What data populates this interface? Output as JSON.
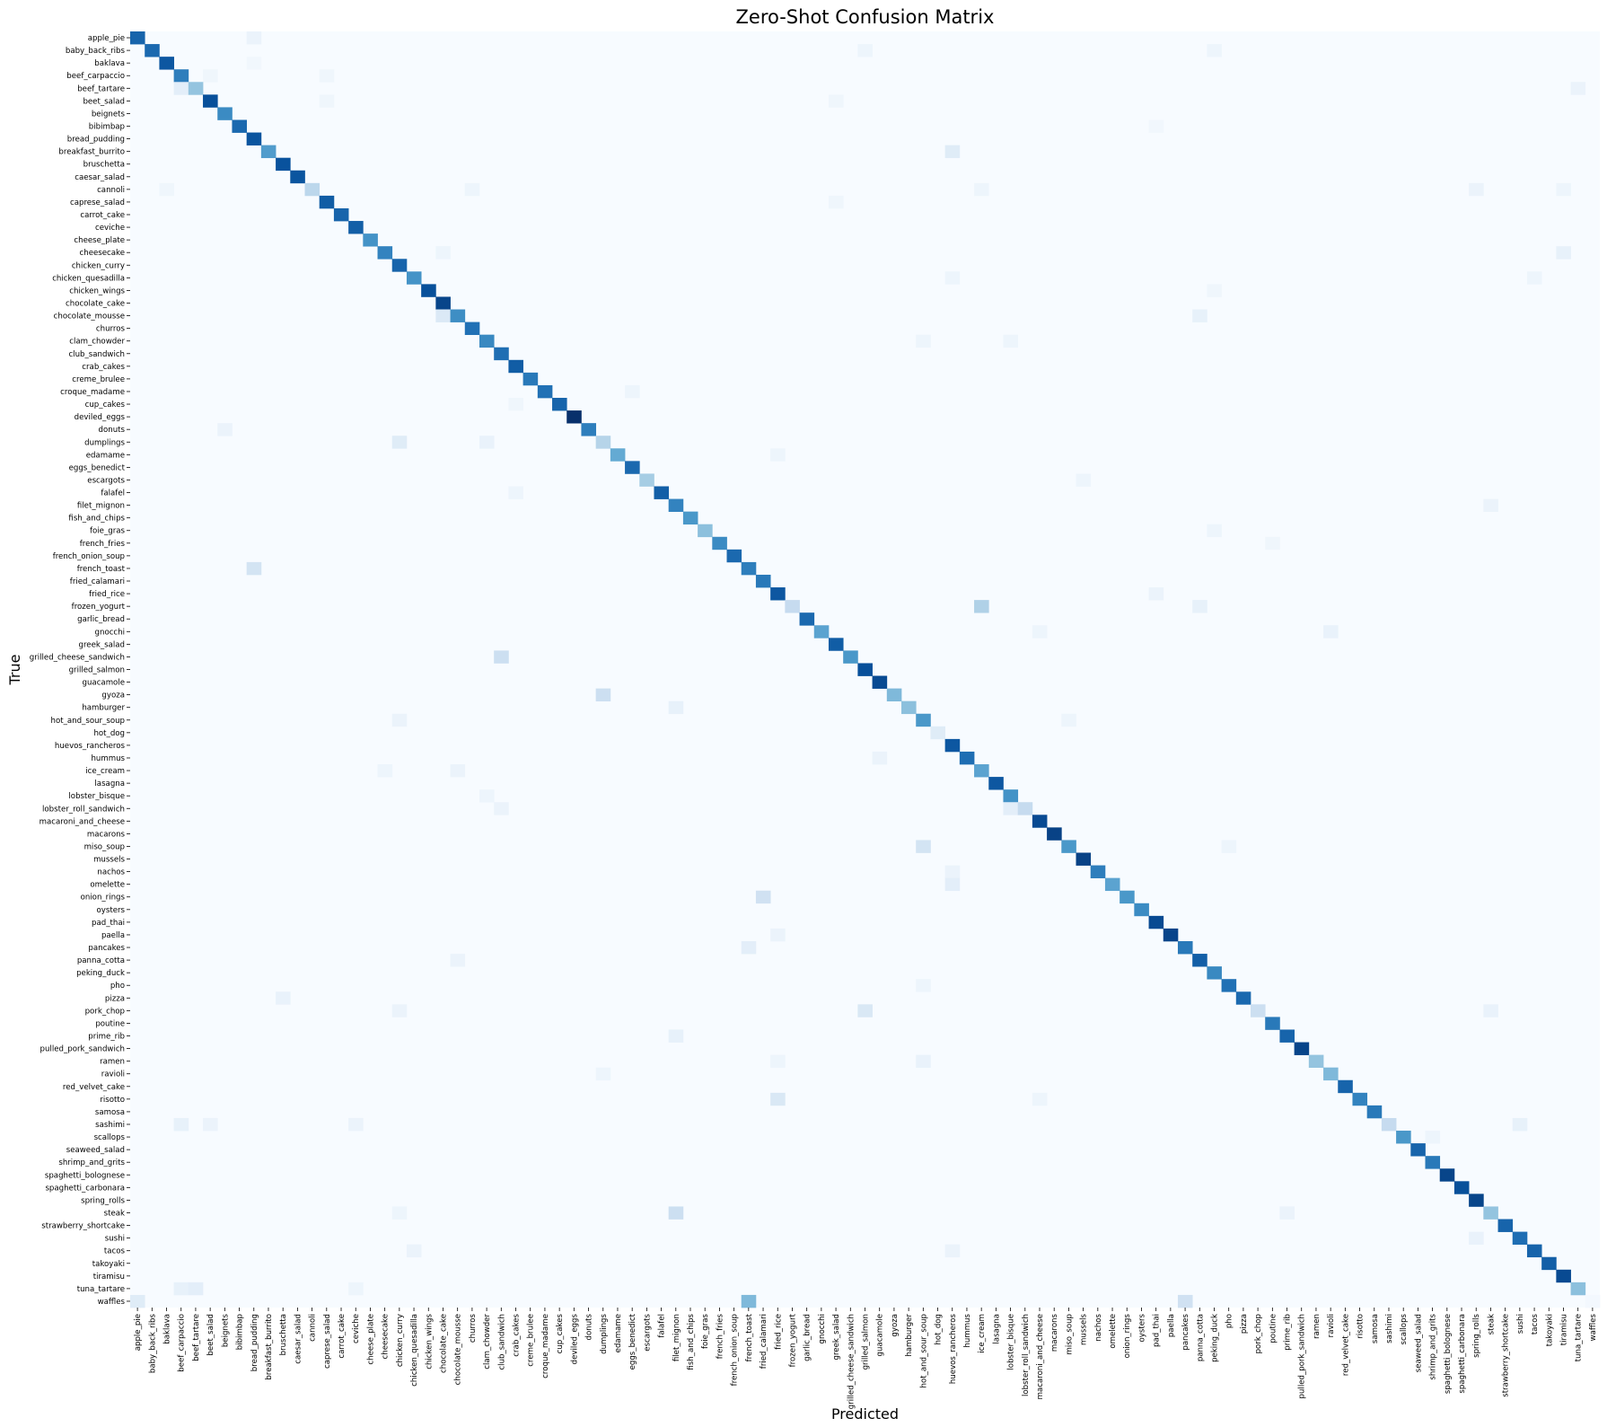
{
  "chart_data": {
    "type": "heatmap",
    "title": "Zero-Shot Confusion Matrix",
    "xlabel": "Predicted",
    "ylabel": "True",
    "colormap": "Blues",
    "colorbar": false,
    "grid": false,
    "value_range": [
      0,
      1
    ],
    "labels": [
      "apple_pie",
      "baby_back_ribs",
      "baklava",
      "beef_carpaccio",
      "beef_tartare",
      "beet_salad",
      "beignets",
      "bibimbap",
      "bread_pudding",
      "breakfast_burrito",
      "bruschetta",
      "caesar_salad",
      "cannoli",
      "caprese_salad",
      "carrot_cake",
      "ceviche",
      "cheese_plate",
      "cheesecake",
      "chicken_curry",
      "chicken_quesadilla",
      "chicken_wings",
      "chocolate_cake",
      "chocolate_mousse",
      "churros",
      "clam_chowder",
      "club_sandwich",
      "crab_cakes",
      "creme_brulee",
      "croque_madame",
      "cup_cakes",
      "deviled_eggs",
      "donuts",
      "dumplings",
      "edamame",
      "eggs_benedict",
      "escargots",
      "falafel",
      "filet_mignon",
      "fish_and_chips",
      "foie_gras",
      "french_fries",
      "french_onion_soup",
      "french_toast",
      "fried_calamari",
      "fried_rice",
      "frozen_yogurt",
      "garlic_bread",
      "gnocchi",
      "greek_salad",
      "grilled_cheese_sandwich",
      "grilled_salmon",
      "guacamole",
      "gyoza",
      "hamburger",
      "hot_and_sour_soup",
      "hot_dog",
      "huevos_rancheros",
      "hummus",
      "ice_cream",
      "lasagna",
      "lobster_bisque",
      "lobster_roll_sandwich",
      "macaroni_and_cheese",
      "macarons",
      "miso_soup",
      "mussels",
      "nachos",
      "omelette",
      "onion_rings",
      "oysters",
      "pad_thai",
      "paella",
      "pancakes",
      "panna_cotta",
      "peking_duck",
      "pho",
      "pizza",
      "pork_chop",
      "poutine",
      "prime_rib",
      "pulled_pork_sandwich",
      "ramen",
      "ravioli",
      "red_velvet_cake",
      "risotto",
      "samosa",
      "sashimi",
      "scallops",
      "seaweed_salad",
      "shrimp_and_grits",
      "spaghetti_bolognese",
      "spaghetti_carbonara",
      "spring_rolls",
      "steak",
      "strawberry_shortcake",
      "sushi",
      "tacos",
      "takoyaki",
      "tiramisu",
      "tuna_tartare",
      "waffles"
    ],
    "diagonal": [
      0.8,
      0.78,
      0.85,
      0.7,
      0.4,
      0.88,
      0.65,
      0.78,
      0.86,
      0.58,
      0.87,
      0.86,
      0.28,
      0.83,
      0.8,
      0.82,
      0.62,
      0.68,
      0.8,
      0.62,
      0.88,
      0.92,
      0.64,
      0.75,
      0.66,
      0.76,
      0.83,
      0.72,
      0.75,
      0.8,
      1.0,
      0.7,
      0.3,
      0.52,
      0.78,
      0.35,
      0.82,
      0.68,
      0.6,
      0.42,
      0.65,
      0.78,
      0.7,
      0.72,
      0.85,
      0.25,
      0.78,
      0.55,
      0.83,
      0.6,
      0.88,
      0.9,
      0.45,
      0.42,
      0.6,
      0.12,
      0.85,
      0.76,
      0.55,
      0.85,
      0.62,
      0.25,
      0.9,
      0.93,
      0.6,
      0.93,
      0.7,
      0.55,
      0.6,
      0.65,
      0.9,
      0.92,
      0.72,
      0.82,
      0.66,
      0.75,
      0.78,
      0.22,
      0.72,
      0.8,
      0.92,
      0.4,
      0.45,
      0.8,
      0.68,
      0.72,
      0.25,
      0.6,
      0.8,
      0.72,
      0.92,
      0.88,
      0.92,
      0.4,
      0.8,
      0.76,
      0.8,
      0.82,
      0.9,
      0.42,
      0.02
    ],
    "off_diagonal": [
      {
        "true": "apple_pie",
        "predicted": "bread_pudding",
        "value": 0.06
      },
      {
        "true": "baby_back_ribs",
        "predicted": "grilled_salmon",
        "value": 0.05
      },
      {
        "true": "baby_back_ribs",
        "predicted": "peking_duck",
        "value": 0.05
      },
      {
        "true": "baklava",
        "predicted": "bread_pudding",
        "value": 0.03
      },
      {
        "true": "beef_carpaccio",
        "predicted": "beet_salad",
        "value": 0.04
      },
      {
        "true": "beef_carpaccio",
        "predicted": "caprese_salad",
        "value": 0.04
      },
      {
        "true": "beef_tartare",
        "predicted": "beef_carpaccio",
        "value": 0.1
      },
      {
        "true": "beef_tartare",
        "predicted": "tuna_tartare",
        "value": 0.06
      },
      {
        "true": "beet_salad",
        "predicted": "caprese_salad",
        "value": 0.04
      },
      {
        "true": "beet_salad",
        "predicted": "greek_salad",
        "value": 0.04
      },
      {
        "true": "bibimbap",
        "predicted": "pad_thai",
        "value": 0.03
      },
      {
        "true": "breakfast_burrito",
        "predicted": "huevos_rancheros",
        "value": 0.12
      },
      {
        "true": "cannoli",
        "predicted": "churros",
        "value": 0.05
      },
      {
        "true": "cannoli",
        "predicted": "ice_cream",
        "value": 0.05
      },
      {
        "true": "cannoli",
        "predicted": "spring_rolls",
        "value": 0.06
      },
      {
        "true": "cannoli",
        "predicted": "tiramisu",
        "value": 0.05
      },
      {
        "true": "cannoli",
        "predicted": "baklava",
        "value": 0.04
      },
      {
        "true": "caprese_salad",
        "predicted": "greek_salad",
        "value": 0.04
      },
      {
        "true": "cheesecake",
        "predicted": "chocolate_cake",
        "value": 0.05
      },
      {
        "true": "cheesecake",
        "predicted": "tiramisu",
        "value": 0.08
      },
      {
        "true": "chicken_quesadilla",
        "predicted": "huevos_rancheros",
        "value": 0.05
      },
      {
        "true": "chicken_quesadilla",
        "predicted": "tacos",
        "value": 0.05
      },
      {
        "true": "chicken_wings",
        "predicted": "peking_duck",
        "value": 0.04
      },
      {
        "true": "chocolate_mousse",
        "predicted": "chocolate_cake",
        "value": 0.14
      },
      {
        "true": "chocolate_mousse",
        "predicted": "panna_cotta",
        "value": 0.08
      },
      {
        "true": "clam_chowder",
        "predicted": "hot_and_sour_soup",
        "value": 0.05
      },
      {
        "true": "clam_chowder",
        "predicted": "lobster_bisque",
        "value": 0.05
      },
      {
        "true": "croque_madame",
        "predicted": "eggs_benedict",
        "value": 0.05
      },
      {
        "true": "cup_cakes",
        "predicted": "crab_cakes",
        "value": 0.04
      },
      {
        "true": "donuts",
        "predicted": "beignets",
        "value": 0.06
      },
      {
        "true": "dumplings",
        "predicted": "chicken_curry",
        "value": 0.12
      },
      {
        "true": "dumplings",
        "predicted": "clam_chowder",
        "value": 0.07
      },
      {
        "true": "edamame",
        "predicted": "fried_rice",
        "value": 0.05
      },
      {
        "true": "escargots",
        "predicted": "mussels",
        "value": 0.05
      },
      {
        "true": "falafel",
        "predicted": "crab_cakes",
        "value": 0.05
      },
      {
        "true": "filet_mignon",
        "predicted": "steak",
        "value": 0.06
      },
      {
        "true": "foie_gras",
        "predicted": "peking_duck",
        "value": 0.05
      },
      {
        "true": "french_fries",
        "predicted": "poutine",
        "value": 0.04
      },
      {
        "true": "french_toast",
        "predicted": "bread_pudding",
        "value": 0.18
      },
      {
        "true": "fried_rice",
        "predicted": "pad_thai",
        "value": 0.06
      },
      {
        "true": "frozen_yogurt",
        "predicted": "ice_cream",
        "value": 0.32
      },
      {
        "true": "frozen_yogurt",
        "predicted": "panna_cotta",
        "value": 0.08
      },
      {
        "true": "gnocchi",
        "predicted": "macaroni_and_cheese",
        "value": 0.05
      },
      {
        "true": "gnocchi",
        "predicted": "ravioli",
        "value": 0.07
      },
      {
        "true": "grilled_cheese_sandwich",
        "predicted": "club_sandwich",
        "value": 0.22
      },
      {
        "true": "gyoza",
        "predicted": "dumplings",
        "value": 0.22
      },
      {
        "true": "hamburger",
        "predicted": "filet_mignon",
        "value": 0.08
      },
      {
        "true": "hot_and_sour_soup",
        "predicted": "chicken_curry",
        "value": 0.06
      },
      {
        "true": "hot_and_sour_soup",
        "predicted": "miso_soup",
        "value": 0.05
      },
      {
        "true": "hummus",
        "predicted": "guacamole",
        "value": 0.06
      },
      {
        "true": "ice_cream",
        "predicted": "cheesecake",
        "value": 0.05
      },
      {
        "true": "ice_cream",
        "predicted": "chocolate_mousse",
        "value": 0.06
      },
      {
        "true": "lobster_bisque",
        "predicted": "clam_chowder",
        "value": 0.05
      },
      {
        "true": "lobster_roll_sandwich",
        "predicted": "lobster_bisque",
        "value": 0.1
      },
      {
        "true": "lobster_roll_sandwich",
        "predicted": "club_sandwich",
        "value": 0.06
      },
      {
        "true": "miso_soup",
        "predicted": "hot_and_sour_soup",
        "value": 0.18
      },
      {
        "true": "miso_soup",
        "predicted": "pho",
        "value": 0.05
      },
      {
        "true": "nachos",
        "predicted": "huevos_rancheros",
        "value": 0.06
      },
      {
        "true": "omelette",
        "predicted": "huevos_rancheros",
        "value": 0.1
      },
      {
        "true": "onion_rings",
        "predicted": "fried_calamari",
        "value": 0.2
      },
      {
        "true": "paella",
        "predicted": "fried_rice",
        "value": 0.06
      },
      {
        "true": "pancakes",
        "predicted": "french_toast",
        "value": 0.1
      },
      {
        "true": "panna_cotta",
        "predicted": "chocolate_mousse",
        "value": 0.06
      },
      {
        "true": "pho",
        "predicted": "hot_and_sour_soup",
        "value": 0.05
      },
      {
        "true": "pizza",
        "predicted": "bruschetta",
        "value": 0.07
      },
      {
        "true": "pork_chop",
        "predicted": "grilled_salmon",
        "value": 0.15
      },
      {
        "true": "pork_chop",
        "predicted": "steak",
        "value": 0.07
      },
      {
        "true": "pork_chop",
        "predicted": "chicken_curry",
        "value": 0.06
      },
      {
        "true": "prime_rib",
        "predicted": "filet_mignon",
        "value": 0.08
      },
      {
        "true": "ramen",
        "predicted": "hot_and_sour_soup",
        "value": 0.07
      },
      {
        "true": "ramen",
        "predicted": "fried_rice",
        "value": 0.05
      },
      {
        "true": "ravioli",
        "predicted": "dumplings",
        "value": 0.05
      },
      {
        "true": "risotto",
        "predicted": "fried_rice",
        "value": 0.15
      },
      {
        "true": "risotto",
        "predicted": "macaroni_and_cheese",
        "value": 0.05
      },
      {
        "true": "sashimi",
        "predicted": "beef_carpaccio",
        "value": 0.08
      },
      {
        "true": "sashimi",
        "predicted": "beet_salad",
        "value": 0.06
      },
      {
        "true": "sashimi",
        "predicted": "ceviche",
        "value": 0.06
      },
      {
        "true": "sashimi",
        "predicted": "sushi",
        "value": 0.08
      },
      {
        "true": "scallops",
        "predicted": "shrimp_and_grits",
        "value": 0.05
      },
      {
        "true": "steak",
        "predicted": "filet_mignon",
        "value": 0.22
      },
      {
        "true": "steak",
        "predicted": "prime_rib",
        "value": 0.06
      },
      {
        "true": "steak",
        "predicted": "chicken_curry",
        "value": 0.05
      },
      {
        "true": "sushi",
        "predicted": "spring_rolls",
        "value": 0.07
      },
      {
        "true": "tacos",
        "predicted": "chicken_quesadilla",
        "value": 0.06
      },
      {
        "true": "tacos",
        "predicted": "huevos_rancheros",
        "value": 0.06
      },
      {
        "true": "tuna_tartare",
        "predicted": "beef_carpaccio",
        "value": 0.08
      },
      {
        "true": "tuna_tartare",
        "predicted": "beef_tartare",
        "value": 0.1
      },
      {
        "true": "tuna_tartare",
        "predicted": "ceviche",
        "value": 0.05
      },
      {
        "true": "waffles",
        "predicted": "french_toast",
        "value": 0.45
      },
      {
        "true": "waffles",
        "predicted": "pancakes",
        "value": 0.2
      },
      {
        "true": "waffles",
        "predicted": "apple_pie",
        "value": 0.12
      }
    ]
  }
}
